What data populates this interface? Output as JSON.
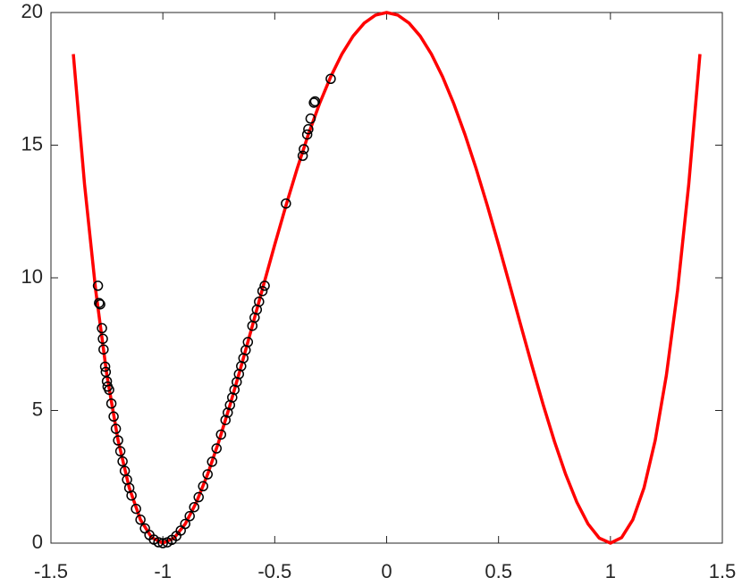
{
  "chart_data": {
    "type": "line",
    "xlim": [
      -1.5,
      1.5
    ],
    "xticks": [
      -1.5,
      -1,
      -0.5,
      0,
      0.5,
      1,
      1.5
    ],
    "ylim": [
      0,
      20
    ],
    "yticks": [
      0,
      5,
      10,
      15,
      20
    ],
    "series": [
      {
        "color": "#ff0000",
        "style": "line",
        "x": [
          -1.4,
          -1.35,
          -1.3,
          -1.25,
          -1.2,
          -1.15,
          -1.1,
          -1.05,
          -1,
          -0.95,
          -0.9,
          -0.85,
          -0.8,
          -0.75,
          -0.7,
          -0.65,
          -0.6,
          -0.55,
          -0.5,
          -0.45,
          -0.4,
          -0.35,
          -0.3,
          -0.25,
          -0.2,
          -0.15,
          -0.1,
          -0.05,
          0,
          0.05,
          0.1,
          0.15,
          0.2,
          0.25,
          0.3,
          0.35,
          0.4,
          0.45,
          0.5,
          0.55,
          0.6,
          0.65,
          0.7,
          0.75,
          0.8,
          0.85,
          0.9,
          0.95,
          1,
          1.05,
          1.1,
          1.15,
          1.2,
          1.25,
          1.3,
          1.35,
          1.4
        ],
        "values": [
          18.432,
          13.53,
          9.522,
          6.328,
          3.872,
          2.08,
          0.882,
          0.21,
          0,
          0.19,
          0.722,
          1.54,
          2.592,
          3.828,
          5.202,
          6.67,
          8.192,
          9.73,
          11.25,
          12.72,
          14.112,
          15.4,
          16.562,
          17.578,
          18.432,
          19.11,
          19.602,
          19.9,
          20,
          19.9,
          19.602,
          19.11,
          18.432,
          17.578,
          16.562,
          15.4,
          14.112,
          12.72,
          11.25,
          9.73,
          8.192,
          6.67,
          5.202,
          3.828,
          2.592,
          1.54,
          0.722,
          0.19,
          0,
          0.21,
          0.882,
          2.08,
          3.872,
          6.328,
          9.522,
          13.53,
          18.432
        ]
      },
      {
        "color": "#000000",
        "style": "markers",
        "x": [
          -1.29,
          -1.285,
          -1.28,
          -1.272,
          -1.268,
          -1.265,
          -1.258,
          -1.255,
          -1.25,
          -1.247,
          -1.24,
          -1.23,
          -1.22,
          -1.21,
          -1.2,
          -1.19,
          -1.18,
          -1.17,
          -1.16,
          -1.15,
          -1.14,
          -1.12,
          -1.1,
          -1.08,
          -1.06,
          -1.04,
          -1.02,
          -1,
          -0.98,
          -0.96,
          -0.94,
          -0.92,
          -0.9,
          -0.88,
          -0.86,
          -0.84,
          -0.82,
          -0.8,
          -0.78,
          -0.76,
          -0.74,
          -0.72,
          -0.71,
          -0.7,
          -0.69,
          -0.68,
          -0.67,
          -0.66,
          -0.65,
          -0.64,
          -0.63,
          -0.62,
          -0.6,
          -0.59,
          -0.58,
          -0.57,
          -0.555,
          -0.545,
          -0.45,
          -0.375,
          -0.37,
          -0.355,
          -0.35,
          -0.34,
          -0.325,
          -0.32,
          -0.25
        ],
        "values": [
          9.7,
          9.05,
          9.0,
          8.1,
          7.7,
          7.3,
          6.65,
          6.45,
          6.1,
          5.9,
          5.78,
          5.261,
          4.771,
          4.308,
          3.872,
          3.463,
          3.08,
          2.722,
          2.389,
          2.08,
          1.795,
          1.294,
          0.882,
          0.554,
          0.306,
          0.133,
          0.033,
          0,
          0.031,
          0.123,
          0.271,
          0.472,
          0.722,
          1.018,
          1.356,
          1.733,
          2.146,
          2.592,
          3.067,
          3.568,
          4.093,
          4.639,
          4.918,
          5.202,
          5.489,
          5.78,
          6.074,
          6.371,
          6.67,
          6.971,
          7.275,
          7.579,
          8.192,
          8.5,
          8.8,
          9.1,
          9.5,
          9.7,
          12.8,
          14.6,
          14.85,
          15.4,
          15.6,
          16.0,
          16.6,
          16.65,
          17.5
        ]
      }
    ]
  }
}
